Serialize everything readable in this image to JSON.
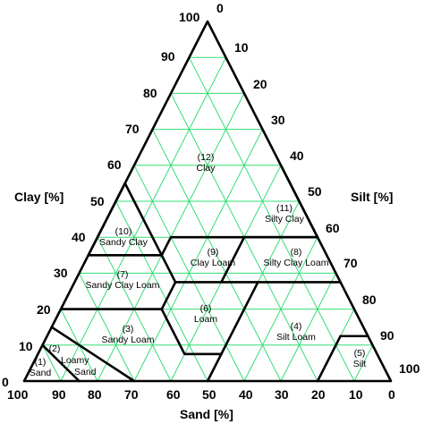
{
  "axes": {
    "clay_title": "Clay [%]",
    "silt_title": "Silt [%]",
    "sand_title": "Sand [%]",
    "clay_ticks": [
      "100",
      "90",
      "80",
      "70",
      "60",
      "50",
      "40",
      "30",
      "20",
      "10",
      "0"
    ],
    "silt_ticks": [
      "0",
      "10",
      "20",
      "30",
      "40",
      "50",
      "60",
      "70",
      "80",
      "90",
      "100"
    ],
    "sand_ticks": [
      "100",
      "90",
      "80",
      "70",
      "60",
      "50",
      "40",
      "30",
      "20",
      "10",
      "0"
    ]
  },
  "zones": [
    {
      "id": "clay",
      "number": "(12)",
      "name": "Clay"
    },
    {
      "id": "silty-clay",
      "number": "(11)",
      "name": "Silty Clay"
    },
    {
      "id": "sandy-clay",
      "number": "(10)",
      "name": "Sandy Clay"
    },
    {
      "id": "clay-loam",
      "number": "(9)",
      "name": "Clay Loam"
    },
    {
      "id": "silty-clay-loam",
      "number": "(8)",
      "name": "Silty Clay Loam"
    },
    {
      "id": "sandy-clay-loam",
      "number": "(7)",
      "name": "Sandy Clay Loam"
    },
    {
      "id": "loam",
      "number": "(6)",
      "name": "Loam"
    },
    {
      "id": "silt-loam",
      "number": "(4)",
      "name": "Silt Loam"
    },
    {
      "id": "sandy-loam",
      "number": "(3)",
      "name": "Sandy Loam"
    },
    {
      "id": "loamy-sand",
      "number": "(2)",
      "name": "Loamy Sand"
    },
    {
      "id": "sand",
      "number": "(1)",
      "name": "Sand"
    },
    {
      "id": "silt",
      "number": "(5)",
      "name": "Silt"
    }
  ],
  "colors": {
    "grid": "#33dd77",
    "boundary": "#000000"
  }
}
